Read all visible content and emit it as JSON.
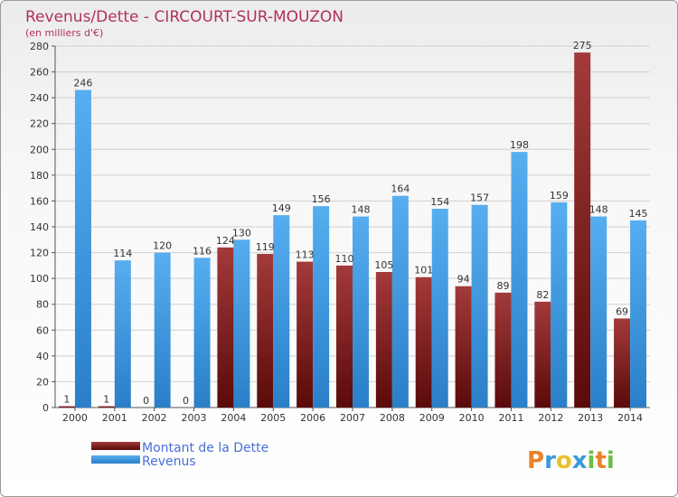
{
  "chart_data": {
    "type": "bar",
    "title": "Revenus/Dette - CIRCOURT-SUR-MOUZON",
    "subtitle": "(en milliers d'€)",
    "categories": [
      "2000",
      "2001",
      "2002",
      "2003",
      "2004",
      "2005",
      "2006",
      "2007",
      "2008",
      "2009",
      "2010",
      "2011",
      "2012",
      "2013",
      "2014"
    ],
    "series": [
      {
        "name": "Montant de la Dette",
        "color": "#7a1e1e",
        "values": [
          1,
          1,
          0,
          0,
          124,
          119,
          113,
          110,
          105,
          101,
          94,
          89,
          82,
          275,
          69
        ]
      },
      {
        "name": "Revenus",
        "color": "#3b9ae0",
        "values": [
          246,
          114,
          120,
          116,
          130,
          149,
          156,
          148,
          164,
          154,
          157,
          198,
          159,
          148,
          145
        ]
      }
    ],
    "ylim": [
      0,
      280
    ],
    "yticks": [
      0,
      20,
      40,
      60,
      80,
      100,
      120,
      140,
      160,
      180,
      200,
      220,
      240,
      260,
      280
    ],
    "grid": true,
    "legend_position": "bottom-left"
  },
  "logo": {
    "text": "Proxiti",
    "letters": [
      "P",
      "r",
      "o",
      "x",
      "i",
      "t",
      "i"
    ],
    "colors": [
      "#e8832a",
      "#3a9ad9",
      "#e8c12a",
      "#3a9ad9",
      "#6cbd45",
      "#e8832a",
      "#6cbd45"
    ]
  }
}
